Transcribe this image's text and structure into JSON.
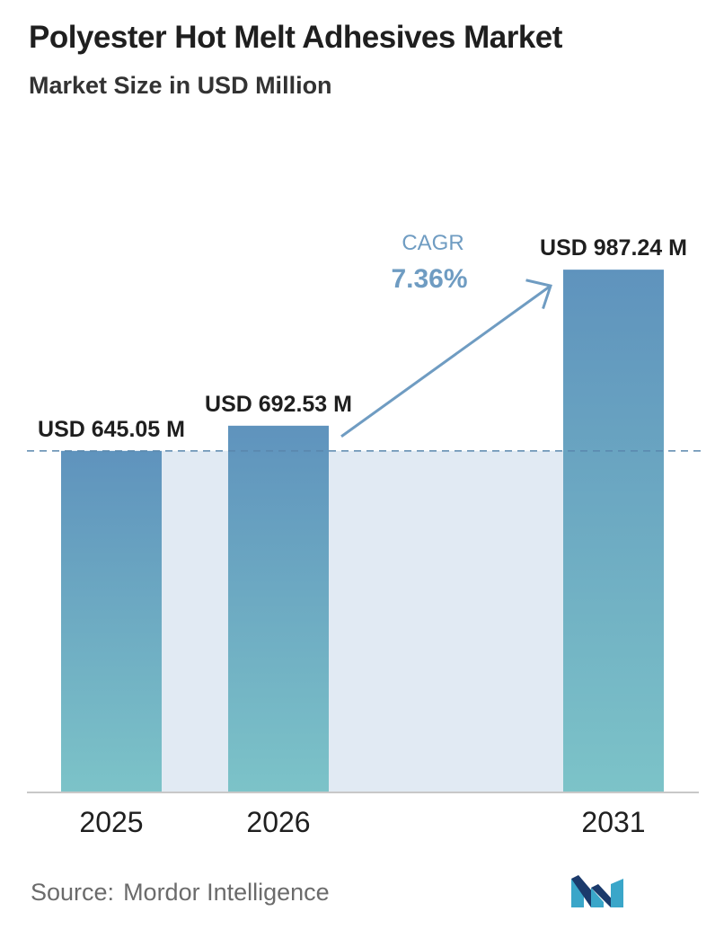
{
  "header": {
    "title": "Polyester Hot Melt Adhesives Market",
    "subtitle": "Market Size in USD Million"
  },
  "cagr": {
    "label": "CAGR",
    "value": "7.36%"
  },
  "footer": {
    "source_prefix": "Source:",
    "source_name": "Mordor Intelligence"
  },
  "logo": {
    "icon": "mordor-intelligence-logo-icon",
    "colors": [
      "#1b3a6b",
      "#3aa6c9"
    ]
  },
  "colors": {
    "bar_top": "#5f93bd",
    "bar_bottom": "#7cc3c8",
    "band": "#e1eaf3",
    "annotation": "#6f9cc2",
    "dashed": "#5a87ad"
  },
  "chart_data": {
    "type": "bar",
    "categories": [
      "2025",
      "2026",
      "2031"
    ],
    "values": [
      645.05,
      692.53,
      987.24
    ],
    "value_labels": [
      "USD 645.05 M",
      "USD 692.53 M",
      "USD 987.24 M"
    ],
    "title": "Polyester Hot Melt Adhesives Market",
    "subtitle": "Market Size in USD Million",
    "xlabel": "",
    "ylabel": "",
    "ylim": [
      0,
      1130
    ],
    "grid": false,
    "legend": "none"
  }
}
